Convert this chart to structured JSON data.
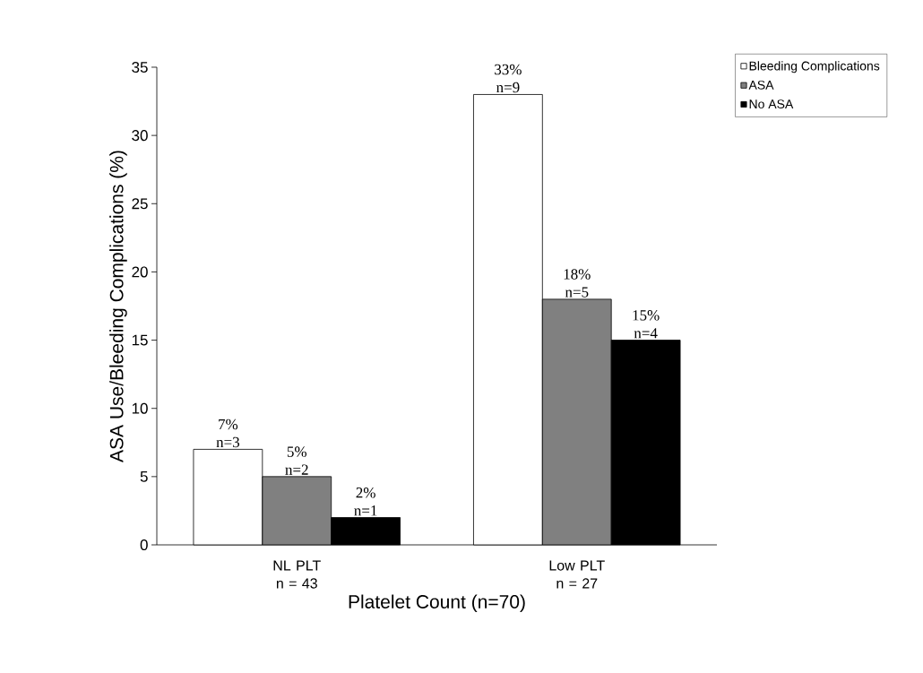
{
  "chart_data": {
    "type": "bar",
    "xlabel": "Platelet Count (n=70)",
    "ylabel": "ASA Use/Bleeding Complications (%)",
    "categories": [
      "NL PLT n = 43",
      "Low PLT n = 27"
    ],
    "series": [
      {
        "name": "Bleeding Complications",
        "color": "#ffffff",
        "values": [
          7,
          33
        ],
        "value_labels": [
          "7% n=3",
          "33% n=9"
        ]
      },
      {
        "name": "ASA",
        "color": "#808080",
        "values": [
          5,
          18
        ],
        "value_labels": [
          "5% n=2",
          "18% n=5"
        ]
      },
      {
        "name": "No ASA",
        "color": "#000000",
        "values": [
          2,
          15
        ],
        "value_labels": [
          "2% n=1",
          "15% n=4"
        ]
      }
    ],
    "ylim": [
      0,
      35
    ],
    "yticks": [
      0,
      5,
      10,
      15,
      20,
      25,
      30,
      35
    ],
    "grid": false,
    "legend": "top right"
  }
}
